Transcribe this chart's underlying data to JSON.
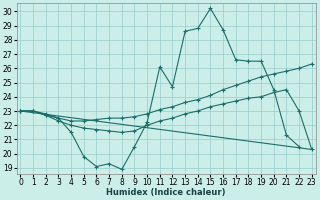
{
  "xlabel": "Humidex (Indice chaleur)",
  "bg_color": "#cceee8",
  "grid_color": "#99cccc",
  "line_color": "#1a6e6a",
  "x_ticks": [
    0,
    1,
    2,
    3,
    4,
    5,
    6,
    7,
    8,
    9,
    10,
    11,
    12,
    13,
    14,
    15,
    16,
    17,
    18,
    19,
    20,
    21,
    22,
    23
  ],
  "y_ticks": [
    19,
    20,
    21,
    22,
    23,
    24,
    25,
    26,
    27,
    28,
    29,
    30
  ],
  "xlim": [
    -0.3,
    23.3
  ],
  "ylim": [
    18.6,
    30.6
  ],
  "lines": [
    {
      "x": [
        0,
        1,
        2,
        3,
        4,
        5,
        6,
        7,
        8,
        9,
        10,
        11,
        12,
        13,
        14,
        15,
        16,
        17,
        18,
        19,
        20,
        21,
        22,
        23
      ],
      "y": [
        23.0,
        23.0,
        22.7,
        22.5,
        21.5,
        19.8,
        19.1,
        19.3,
        18.9,
        20.5,
        22.2,
        26.1,
        24.7,
        28.6,
        28.8,
        30.2,
        28.7,
        26.6,
        26.5,
        26.5,
        24.5,
        21.3,
        20.5,
        null
      ]
    },
    {
      "x": [
        0,
        1,
        2,
        3,
        4,
        5,
        6,
        7,
        8,
        9,
        10,
        11,
        12,
        13,
        14,
        15,
        16,
        17,
        18,
        19,
        20,
        21,
        22,
        23
      ],
      "y": [
        23.0,
        23.0,
        22.8,
        22.5,
        22.3,
        22.3,
        22.4,
        22.5,
        22.5,
        22.6,
        22.8,
        23.1,
        23.3,
        23.6,
        23.8,
        24.1,
        24.5,
        24.8,
        25.1,
        25.4,
        25.6,
        25.8,
        26.0,
        26.3
      ]
    },
    {
      "x": [
        0,
        1,
        2,
        3,
        4,
        5,
        6,
        7,
        8,
        9,
        10,
        11,
        12,
        13,
        14,
        15,
        16,
        17,
        18,
        19,
        20,
        21,
        22,
        23
      ],
      "y": [
        23.0,
        23.0,
        22.7,
        22.3,
        22.0,
        21.8,
        21.7,
        21.6,
        21.5,
        21.6,
        22.0,
        22.3,
        22.5,
        22.8,
        23.0,
        23.3,
        23.5,
        23.7,
        23.9,
        24.0,
        24.3,
        24.5,
        23.0,
        20.3
      ]
    },
    {
      "x": [
        0,
        23
      ],
      "y": [
        23.0,
        20.3
      ]
    }
  ],
  "marker": "+",
  "markersize": 3,
  "linewidth": 0.8,
  "tick_fontsize": 5.5,
  "xlabel_fontsize": 6.0,
  "xlabel_color": "#1a4444"
}
